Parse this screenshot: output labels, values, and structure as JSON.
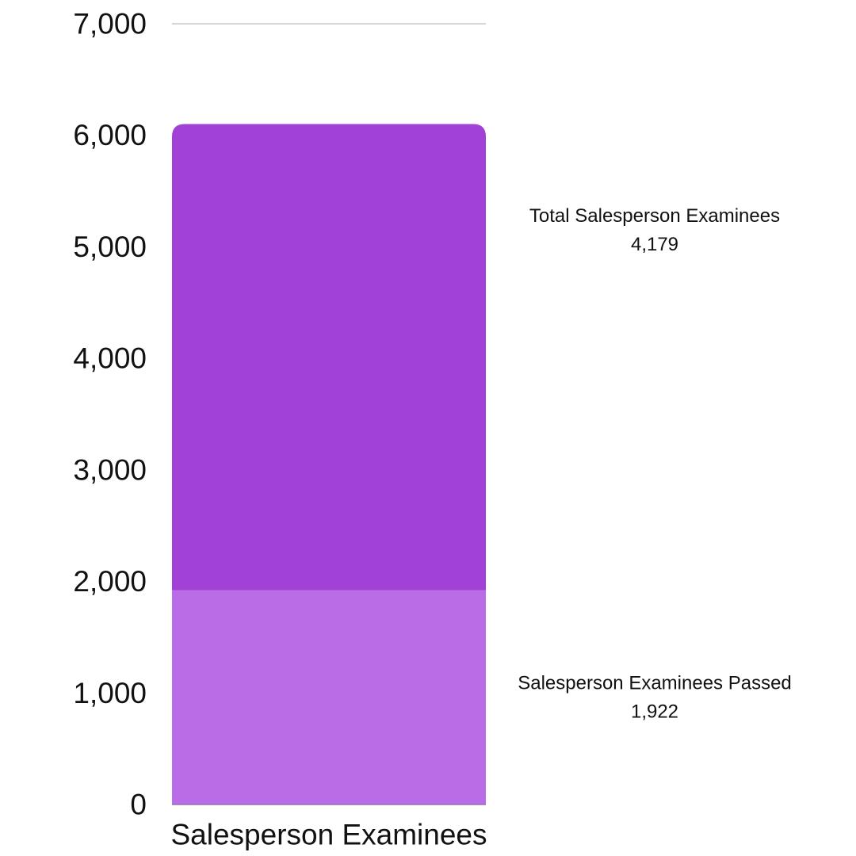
{
  "chart_data": {
    "type": "bar",
    "stacked": true,
    "categories": [
      "Salesperson Examinees"
    ],
    "ylim": [
      0,
      7000
    ],
    "yticks": [
      0,
      1000,
      2000,
      3000,
      4000,
      5000,
      6000,
      7000
    ],
    "ytick_labels": [
      "0",
      "1,000",
      "2,000",
      "3,000",
      "4,000",
      "5,000",
      "6,000",
      "7,000"
    ],
    "grid": "top line only",
    "legend": "none",
    "series": [
      {
        "name": "Salesperson Examinees Passed",
        "values": [
          1922
        ],
        "value_label": "1,922",
        "color": "#BA6BE6"
      },
      {
        "name": "Total Salesperson Examinees",
        "values": [
          4179
        ],
        "value_label": "4,179",
        "color": "#A241D5"
      }
    ]
  }
}
